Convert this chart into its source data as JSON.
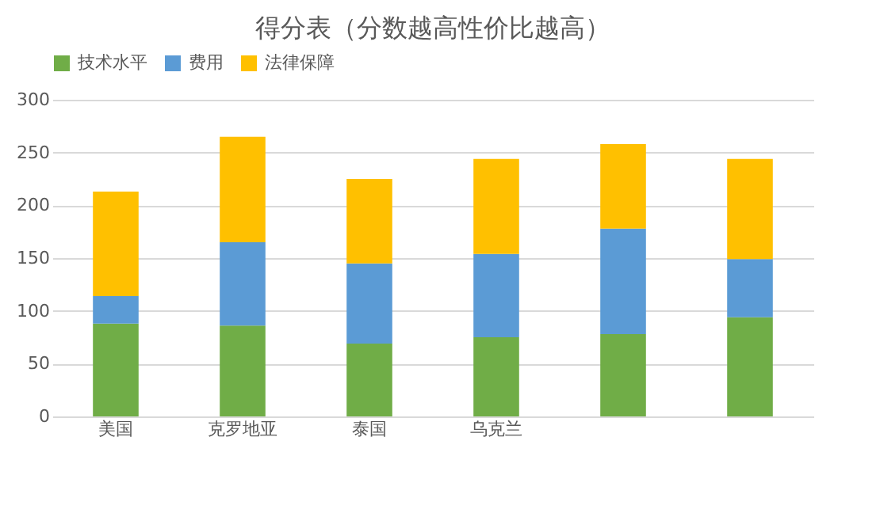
{
  "chart_data": {
    "type": "bar",
    "title": "得分表（分数越高性价比越高）",
    "categories": [
      "美国",
      "克罗地亚",
      "泰国",
      "乌克兰",
      null,
      null
    ],
    "stacked": true,
    "series": [
      {
        "name": "技术水平",
        "color": "#70ad47",
        "values": [
          88,
          86,
          69,
          75,
          78,
          94
        ]
      },
      {
        "name": "费用",
        "color": "#5b9bd5",
        "values": [
          26,
          79,
          76,
          79,
          100,
          55
        ]
      },
      {
        "name": "法律保障",
        "color": "#ffc000",
        "values": [
          99,
          100,
          80,
          90,
          80,
          95
        ]
      }
    ],
    "ylim": [
      0,
      300
    ],
    "yticks": [
      0,
      50,
      100,
      150,
      200,
      250,
      300
    ],
    "grid": "y",
    "legend": "top"
  }
}
